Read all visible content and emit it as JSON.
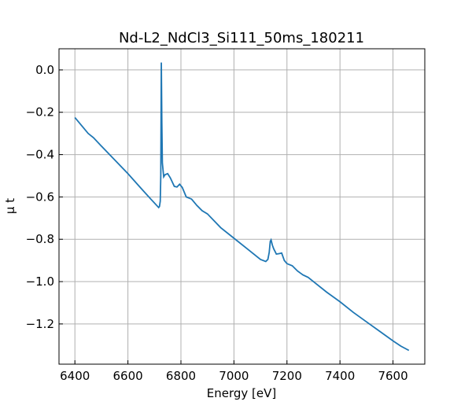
{
  "chart_data": {
    "type": "line",
    "title": "Nd-L2_NdCl3_Si111_50ms_180211",
    "xlabel": "Energy [eV]",
    "ylabel": "μ t",
    "xlim": [
      6340,
      7720
    ],
    "ylim": [
      -1.39,
      0.1
    ],
    "xticks": [
      6400,
      6600,
      6800,
      7000,
      7200,
      7400,
      7600
    ],
    "yticks": [
      0.0,
      -0.2,
      -0.4,
      -0.6,
      -0.8,
      -1.0,
      -1.2
    ],
    "ytick_labels": [
      "0.0",
      "−0.2",
      "−0.4",
      "−0.6",
      "−0.8",
      "−1.0",
      "−1.2"
    ],
    "grid": true,
    "line_color": "#1f77b4",
    "series": [
      {
        "x": [
          6400,
          6430,
          6450,
          6470,
          6500,
          6550,
          6600,
          6650,
          6690,
          6710,
          6716,
          6719,
          6722,
          6724,
          6726,
          6728,
          6730,
          6735,
          6740,
          6750,
          6760,
          6775,
          6785,
          6795,
          6805,
          6820,
          6840,
          6860,
          6880,
          6900,
          6950,
          7000,
          7050,
          7100,
          7120,
          7128,
          7133,
          7137,
          7140,
          7145,
          7150,
          7160,
          7170,
          7180,
          7190,
          7200,
          7220,
          7240,
          7260,
          7280,
          7300,
          7350,
          7400,
          7450,
          7500,
          7550,
          7600,
          7630,
          7660
        ],
        "y": [
          -0.225,
          -0.27,
          -0.3,
          -0.32,
          -0.36,
          -0.425,
          -0.49,
          -0.56,
          -0.615,
          -0.642,
          -0.65,
          -0.645,
          -0.62,
          -0.5,
          0.035,
          -0.25,
          -0.44,
          -0.505,
          -0.495,
          -0.49,
          -0.51,
          -0.55,
          -0.553,
          -0.54,
          -0.555,
          -0.6,
          -0.61,
          -0.64,
          -0.665,
          -0.68,
          -0.745,
          -0.795,
          -0.845,
          -0.895,
          -0.905,
          -0.895,
          -0.862,
          -0.81,
          -0.803,
          -0.828,
          -0.845,
          -0.87,
          -0.868,
          -0.865,
          -0.9,
          -0.915,
          -0.925,
          -0.95,
          -0.968,
          -0.98,
          -1.0,
          -1.05,
          -1.095,
          -1.145,
          -1.19,
          -1.235,
          -1.28,
          -1.305,
          -1.325
        ]
      }
    ]
  }
}
